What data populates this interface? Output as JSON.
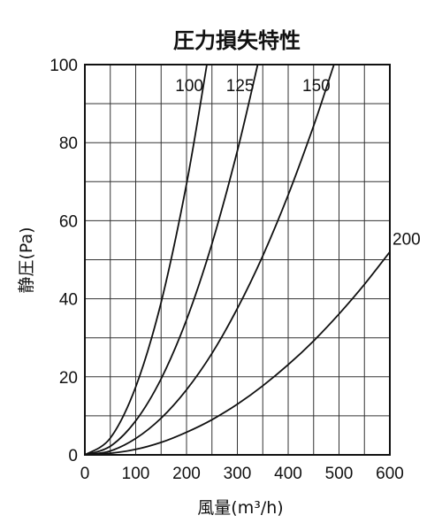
{
  "chart_data": {
    "type": "line",
    "title": "圧力損失特性",
    "xlabel": "風量(m³/h)",
    "ylabel": "静圧(Pa)",
    "xlim": [
      0,
      600
    ],
    "ylim": [
      0,
      100
    ],
    "xticks": [
      0,
      100,
      200,
      300,
      400,
      500,
      600
    ],
    "yticks": [
      0,
      20,
      40,
      60,
      80,
      100
    ],
    "grid": true,
    "minor_grid_x_step": 50,
    "minor_grid_y_step": 10,
    "series": [
      {
        "name": "100",
        "x": [
          0,
          50,
          100,
          150,
          200,
          240
        ],
        "y": [
          0,
          4.3,
          17.4,
          39.1,
          69.4,
          100
        ]
      },
      {
        "name": "125",
        "x": [
          0,
          50,
          100,
          150,
          200,
          250,
          300,
          340
        ],
        "y": [
          0,
          2.2,
          8.7,
          19.5,
          34.6,
          54.1,
          77.9,
          100
        ]
      },
      {
        "name": "150",
        "x": [
          0,
          50,
          100,
          150,
          200,
          250,
          300,
          350,
          400,
          450,
          490
        ],
        "y": [
          0,
          1.0,
          4.2,
          9.4,
          16.7,
          26.0,
          37.5,
          51.0,
          66.6,
          84.3,
          100
        ]
      },
      {
        "name": "200",
        "x": [
          0,
          50,
          100,
          150,
          200,
          250,
          300,
          350,
          400,
          450,
          500,
          550,
          600
        ],
        "y": [
          0,
          0.4,
          1.4,
          3.2,
          5.8,
          9.0,
          13.0,
          17.7,
          23.1,
          29.2,
          36.1,
          43.7,
          52.0
        ]
      }
    ]
  }
}
